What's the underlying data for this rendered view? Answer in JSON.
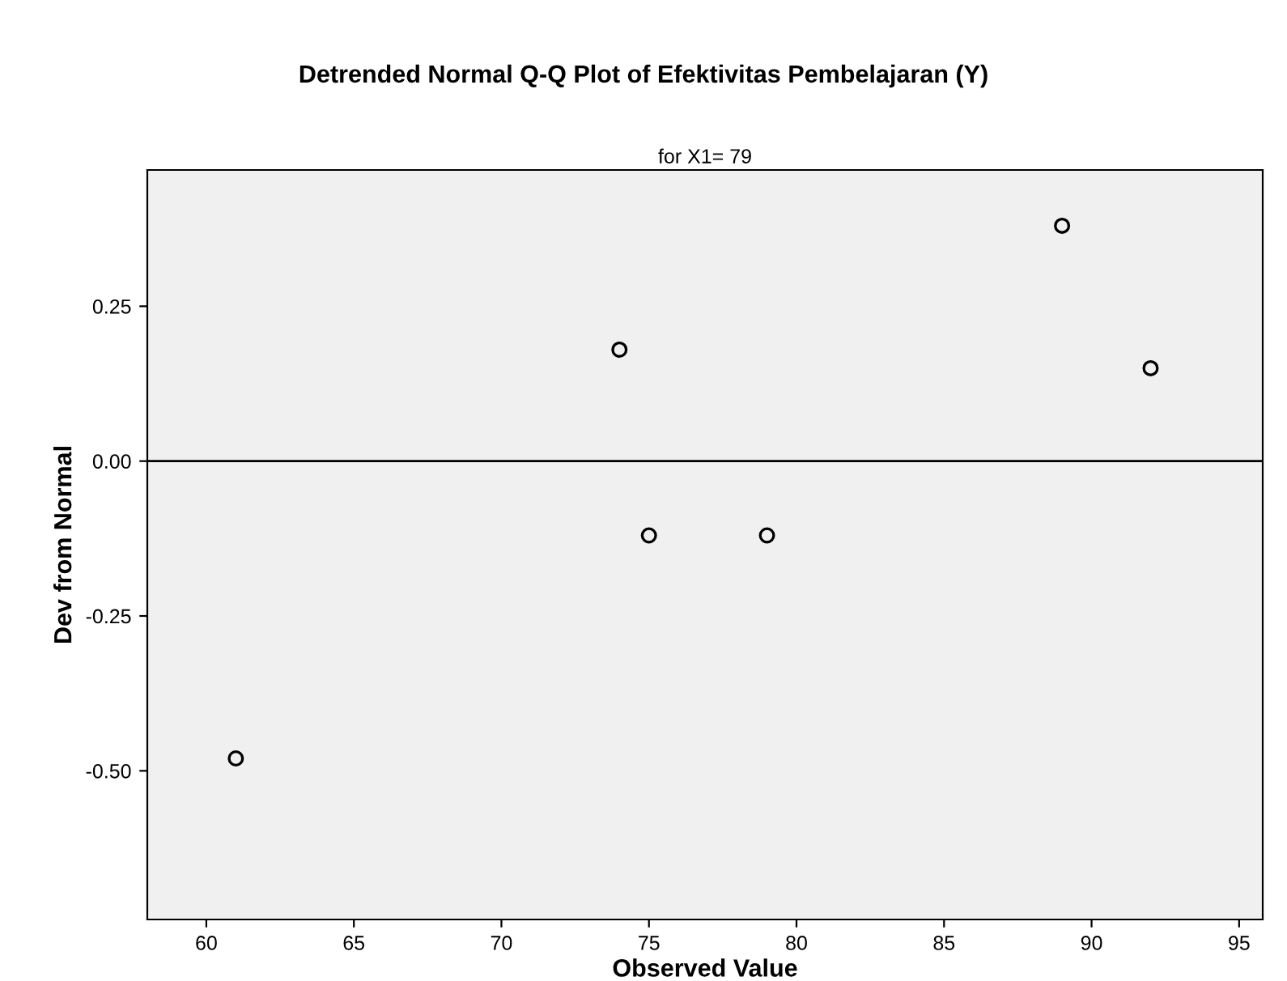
{
  "chart_data": {
    "type": "scatter",
    "title": "Detrended Normal Q-Q Plot of Efektivitas Pembelajaran (Y)",
    "subtitle": "for X1= 79",
    "xlabel": "Observed Value",
    "ylabel": "Dev from Normal",
    "x": [
      61,
      74,
      75,
      79,
      89,
      92
    ],
    "series": [
      {
        "color": "#000000",
        "values": [
          -0.48,
          0.18,
          -0.12,
          -0.12,
          0.38,
          0.15
        ]
      }
    ],
    "xlim": [
      58,
      95.8
    ],
    "xticks": [
      60,
      65,
      70,
      75,
      80,
      85,
      90,
      95
    ],
    "ylim": [
      -0.74,
      0.47
    ],
    "yticks": [
      {
        "value": 0.25,
        "label": "0.25"
      },
      {
        "value": 0,
        "label": "0.00"
      },
      {
        "value": -0.25,
        "label": "-0.25"
      },
      {
        "value": -0.5,
        "label": "-0.50"
      }
    ],
    "ref_lines": [
      {
        "axis": "y",
        "value": 0,
        "color": "#000000"
      }
    ],
    "marker": "circle",
    "grid": false,
    "legend": false
  }
}
